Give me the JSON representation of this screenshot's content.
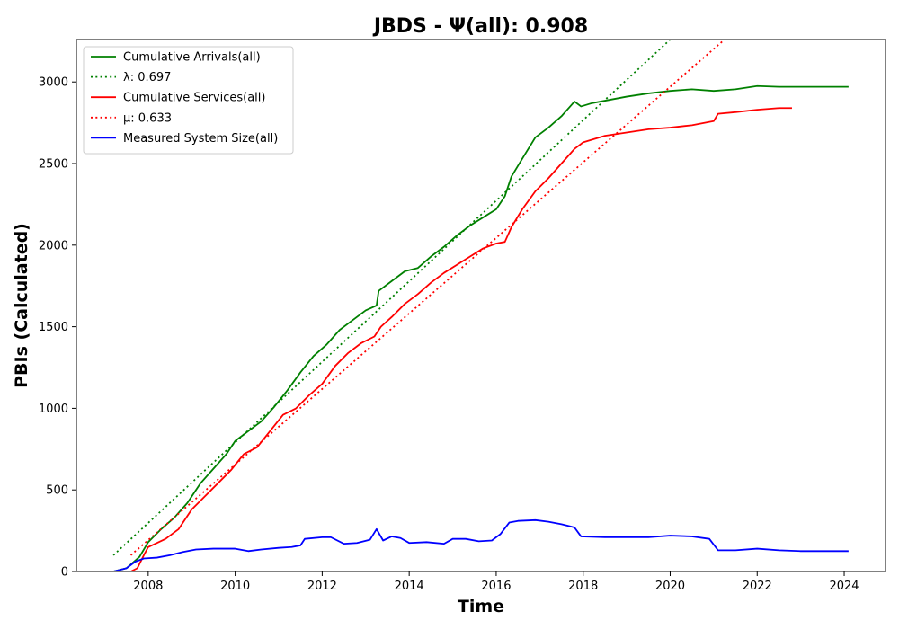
{
  "chart_data": {
    "type": "line",
    "title": "JBDS -  Ψ(all): 0.908",
    "xlabel": "Time",
    "ylabel": "PBIs (Calculated)",
    "xlim": [
      2006.35,
      2024.95
    ],
    "ylim": [
      0,
      3260
    ],
    "xticks": [
      2008,
      2010,
      2012,
      2014,
      2016,
      2018,
      2020,
      2022,
      2024
    ],
    "yticks": [
      0,
      500,
      1000,
      1500,
      2000,
      2500,
      3000
    ],
    "grid": false,
    "legend_position": "upper-left",
    "series": [
      {
        "name": "Cumulative Arrivals(all)",
        "color": "#008000",
        "style": "solid",
        "x": [
          2007.2,
          2007.5,
          2007.8,
          2008.0,
          2008.3,
          2008.6,
          2008.9,
          2009.2,
          2009.5,
          2009.8,
          2010.0,
          2010.3,
          2010.6,
          2010.9,
          2011.2,
          2011.5,
          2011.8,
          2012.1,
          2012.4,
          2012.7,
          2013.0,
          2013.25,
          2013.3,
          2013.6,
          2013.9,
          2014.2,
          2014.5,
          2014.8,
          2015.1,
          2015.4,
          2015.7,
          2016.0,
          2016.2,
          2016.35,
          2016.6,
          2016.9,
          2017.2,
          2017.5,
          2017.8,
          2017.95,
          2018.2,
          2018.6,
          2019.0,
          2019.5,
          2020.0,
          2020.5,
          2021.0,
          2021.5,
          2022.0,
          2022.5,
          2023.0,
          2023.5,
          2024.1
        ],
        "y": [
          0,
          20,
          90,
          180,
          260,
          330,
          420,
          540,
          630,
          720,
          800,
          860,
          920,
          1010,
          1110,
          1220,
          1320,
          1390,
          1480,
          1540,
          1600,
          1630,
          1720,
          1780,
          1840,
          1860,
          1930,
          1990,
          2060,
          2120,
          2170,
          2220,
          2300,
          2420,
          2530,
          2660,
          2720,
          2790,
          2880,
          2850,
          2870,
          2890,
          2910,
          2930,
          2945,
          2955,
          2945,
          2955,
          2975,
          2970,
          2970,
          2970,
          2970
        ]
      },
      {
        "name": "λ: 0.697",
        "color": "#008000",
        "style": "dotted",
        "x": [
          2007.2,
          2020.0
        ],
        "y": [
          100,
          3260
        ]
      },
      {
        "name": "Cumulative Services(all)",
        "color": "#ff0000",
        "style": "solid",
        "x": [
          2007.6,
          2007.75,
          2007.9,
          2008.0,
          2008.4,
          2008.7,
          2009.0,
          2009.3,
          2009.6,
          2009.9,
          2010.2,
          2010.5,
          2010.8,
          2011.1,
          2011.4,
          2011.7,
          2012.0,
          2012.3,
          2012.6,
          2012.9,
          2013.2,
          2013.35,
          2013.6,
          2013.9,
          2014.2,
          2014.5,
          2014.8,
          2015.1,
          2015.4,
          2015.7,
          2016.0,
          2016.2,
          2016.35,
          2016.6,
          2016.9,
          2017.2,
          2017.5,
          2017.8,
          2018.0,
          2018.5,
          2019.0,
          2019.5,
          2020.0,
          2020.5,
          2021.0,
          2021.1,
          2021.5,
          2022.0,
          2022.5,
          2022.8
        ],
        "y": [
          0,
          20,
          100,
          150,
          200,
          260,
          380,
          460,
          540,
          620,
          720,
          760,
          860,
          960,
          1000,
          1080,
          1150,
          1260,
          1340,
          1400,
          1440,
          1500,
          1560,
          1640,
          1700,
          1770,
          1830,
          1880,
          1930,
          1980,
          2010,
          2020,
          2110,
          2220,
          2330,
          2410,
          2500,
          2590,
          2630,
          2670,
          2690,
          2710,
          2720,
          2735,
          2760,
          2805,
          2815,
          2830,
          2840,
          2840
        ]
      },
      {
        "name": "μ: 0.633",
        "color": "#ff0000",
        "style": "dotted",
        "x": [
          2007.6,
          2021.25
        ],
        "y": [
          100,
          3260
        ]
      },
      {
        "name": "Measured System Size(all)",
        "color": "#0000ff",
        "style": "solid",
        "x": [
          2007.2,
          2007.5,
          2007.7,
          2007.9,
          2008.2,
          2008.5,
          2008.8,
          2009.1,
          2009.5,
          2010.0,
          2010.3,
          2010.6,
          2011.0,
          2011.3,
          2011.5,
          2011.6,
          2012.0,
          2012.2,
          2012.5,
          2012.8,
          2013.1,
          2013.25,
          2013.4,
          2013.6,
          2013.8,
          2014.0,
          2014.4,
          2014.8,
          2015.0,
          2015.3,
          2015.6,
          2015.9,
          2016.1,
          2016.3,
          2016.5,
          2016.9,
          2017.2,
          2017.5,
          2017.8,
          2017.95,
          2018.5,
          2019.0,
          2019.5,
          2020.0,
          2020.5,
          2020.9,
          2021.1,
          2021.5,
          2022.0,
          2022.5,
          2023.0,
          2024.1
        ],
        "y": [
          0,
          20,
          60,
          80,
          85,
          100,
          120,
          135,
          140,
          140,
          125,
          135,
          145,
          150,
          160,
          200,
          210,
          210,
          170,
          175,
          195,
          260,
          190,
          215,
          205,
          175,
          180,
          170,
          200,
          200,
          185,
          190,
          230,
          300,
          310,
          315,
          305,
          290,
          270,
          215,
          210,
          210,
          210,
          220,
          215,
          200,
          130,
          130,
          140,
          130,
          125,
          125
        ]
      }
    ]
  }
}
